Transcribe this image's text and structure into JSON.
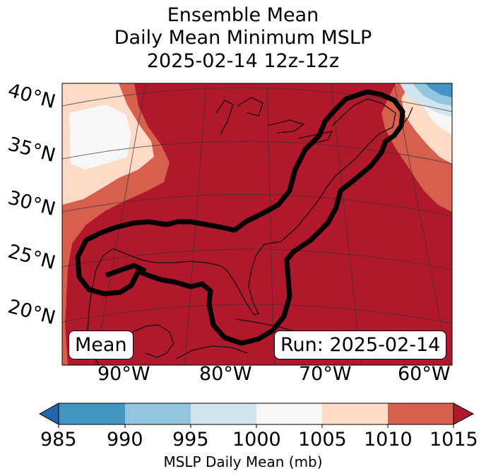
{
  "title": {
    "line1": "Ensemble Mean",
    "line2": "Daily Mean Minimum MSLP",
    "line3": "2025-02-14 12z-12z"
  },
  "map": {
    "lat_labels": [
      "40°N",
      "35°N",
      "30°N",
      "25°N",
      "20°N"
    ],
    "lon_labels": [
      "90°W",
      "80°W",
      "70°W",
      "60°W"
    ],
    "mean_badge": "Mean",
    "run_badge": "Run: 2025-02-14",
    "colors": {
      "background_high": "#b2182b",
      "band_1005_1010": "#d6604d",
      "band_1000_1005": "#fddbc7",
      "band_995_1000": "#f7f7f7",
      "band_990_995": "#d1e5f0",
      "band_985_990": "#92c5de",
      "band_low": "#4393c3",
      "contour": "#000000",
      "coast": "#111111"
    }
  },
  "colorbar": {
    "ticks": [
      "985",
      "990",
      "995",
      "1000",
      "1005",
      "1010",
      "1015"
    ],
    "label": "MSLP Daily Mean (mb)",
    "colors": [
      "#2166ac",
      "#4393c3",
      "#92c5de",
      "#d1e5f0",
      "#f7f7f7",
      "#fddbc7",
      "#d6604d",
      "#b2182b"
    ]
  }
}
